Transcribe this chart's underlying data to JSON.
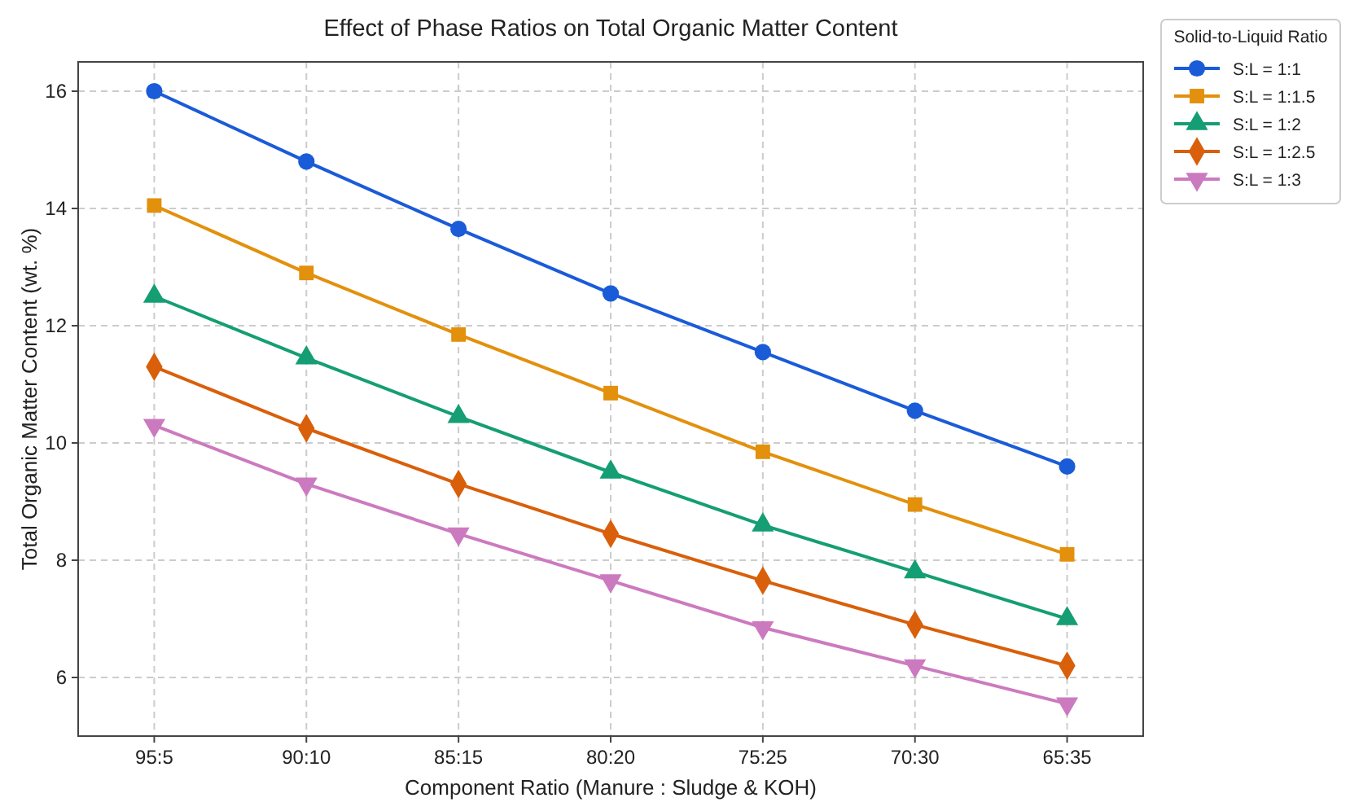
{
  "chart_data": {
    "type": "line",
    "title": "Effect of Phase Ratios on Total Organic Matter Content",
    "xlabel": "Component Ratio (Manure : Sludge & KOH)",
    "ylabel": "Total Organic Matter Content (wt. %)",
    "legend_title": "Solid-to-Liquid Ratio",
    "categories": [
      "95:5",
      "90:10",
      "85:15",
      "80:20",
      "75:25",
      "70:30",
      "65:35"
    ],
    "series": [
      {
        "name": "S:L = 1:1",
        "color": "#1a5bd8",
        "marker": "circle",
        "values": [
          16.0,
          14.8,
          13.65,
          12.55,
          11.55,
          10.55,
          9.6
        ]
      },
      {
        "name": "S:L = 1:1.5",
        "color": "#e3900c",
        "marker": "square",
        "values": [
          14.05,
          12.9,
          11.85,
          10.85,
          9.85,
          8.95,
          8.1
        ]
      },
      {
        "name": "S:L = 1:2",
        "color": "#159e73",
        "marker": "triangle",
        "values": [
          12.5,
          11.45,
          10.45,
          9.5,
          8.6,
          7.8,
          7.0
        ]
      },
      {
        "name": "S:L = 1:2.5",
        "color": "#d95f0a",
        "marker": "diamond",
        "values": [
          11.3,
          10.25,
          9.3,
          8.45,
          7.65,
          6.9,
          6.2
        ]
      },
      {
        "name": "S:L = 1:3",
        "color": "#cc7ac0",
        "marker": "triangle-down",
        "values": [
          10.3,
          9.3,
          8.45,
          7.65,
          6.85,
          6.2,
          5.55
        ]
      }
    ],
    "ylim": [
      5,
      16.5
    ],
    "yticks": [
      6,
      8,
      10,
      12,
      14,
      16
    ],
    "grid": true,
    "legend": "top right",
    "line_style": "solid"
  }
}
